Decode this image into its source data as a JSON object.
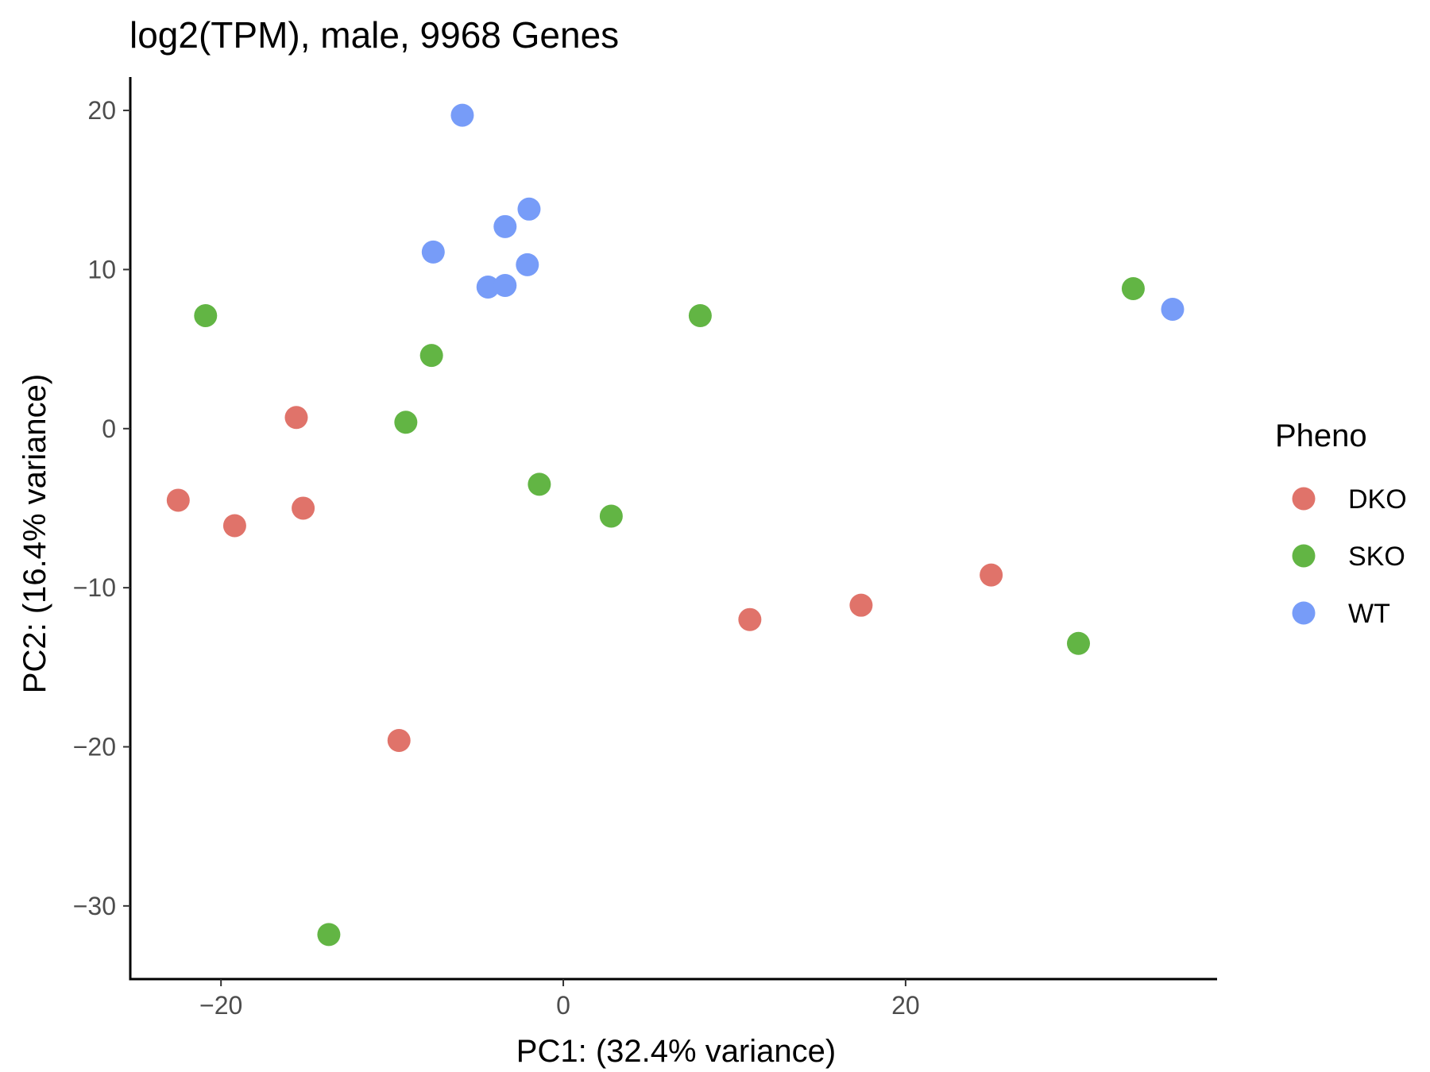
{
  "chart_data": {
    "type": "scatter",
    "title": "log2(TPM), male, 9968 Genes",
    "xlabel": "PC1: (32.4% variance)",
    "ylabel": "PC2: (16.4% variance)",
    "xlim": [
      -25.3,
      38.2
    ],
    "ylim": [
      -34.6,
      22.1
    ],
    "x_ticks": [
      -20,
      0,
      20
    ],
    "y_ticks": [
      20,
      10,
      0,
      -10,
      -20,
      -30
    ],
    "x_tick_labels": [
      "−20",
      "0",
      "20"
    ],
    "y_tick_labels": [
      "20",
      "10",
      "0",
      "−10",
      "−20",
      "−30"
    ],
    "grid": false,
    "legend": {
      "title": "Pheno",
      "position": "right"
    },
    "series": [
      {
        "name": "DKO",
        "color": "#E0736A",
        "points": [
          {
            "x": -15.6,
            "y": 0.7
          },
          {
            "x": -22.5,
            "y": -4.5
          },
          {
            "x": -19.2,
            "y": -6.1
          },
          {
            "x": -15.2,
            "y": -5.0
          },
          {
            "x": -9.6,
            "y": -19.6
          },
          {
            "x": 10.9,
            "y": -12.0
          },
          {
            "x": 17.4,
            "y": -11.1
          },
          {
            "x": 25.0,
            "y": -9.2
          }
        ]
      },
      {
        "name": "SKO",
        "color": "#62B544",
        "points": [
          {
            "x": -20.9,
            "y": 7.1
          },
          {
            "x": -7.7,
            "y": 4.6
          },
          {
            "x": -9.2,
            "y": 0.4
          },
          {
            "x": -1.4,
            "y": -3.5
          },
          {
            "x": 2.8,
            "y": -5.5
          },
          {
            "x": 8.0,
            "y": 7.1
          },
          {
            "x": -13.7,
            "y": -31.8
          },
          {
            "x": 30.1,
            "y": -13.5
          },
          {
            "x": 33.3,
            "y": 8.8
          }
        ]
      },
      {
        "name": "WT",
        "color": "#779CF8",
        "points": [
          {
            "x": -5.9,
            "y": 19.7
          },
          {
            "x": -2.0,
            "y": 13.8
          },
          {
            "x": -3.4,
            "y": 12.7
          },
          {
            "x": -7.6,
            "y": 11.1
          },
          {
            "x": -2.1,
            "y": 10.3
          },
          {
            "x": -4.4,
            "y": 8.9
          },
          {
            "x": -3.4,
            "y": 9.0
          },
          {
            "x": 35.6,
            "y": 7.5
          }
        ]
      }
    ]
  }
}
